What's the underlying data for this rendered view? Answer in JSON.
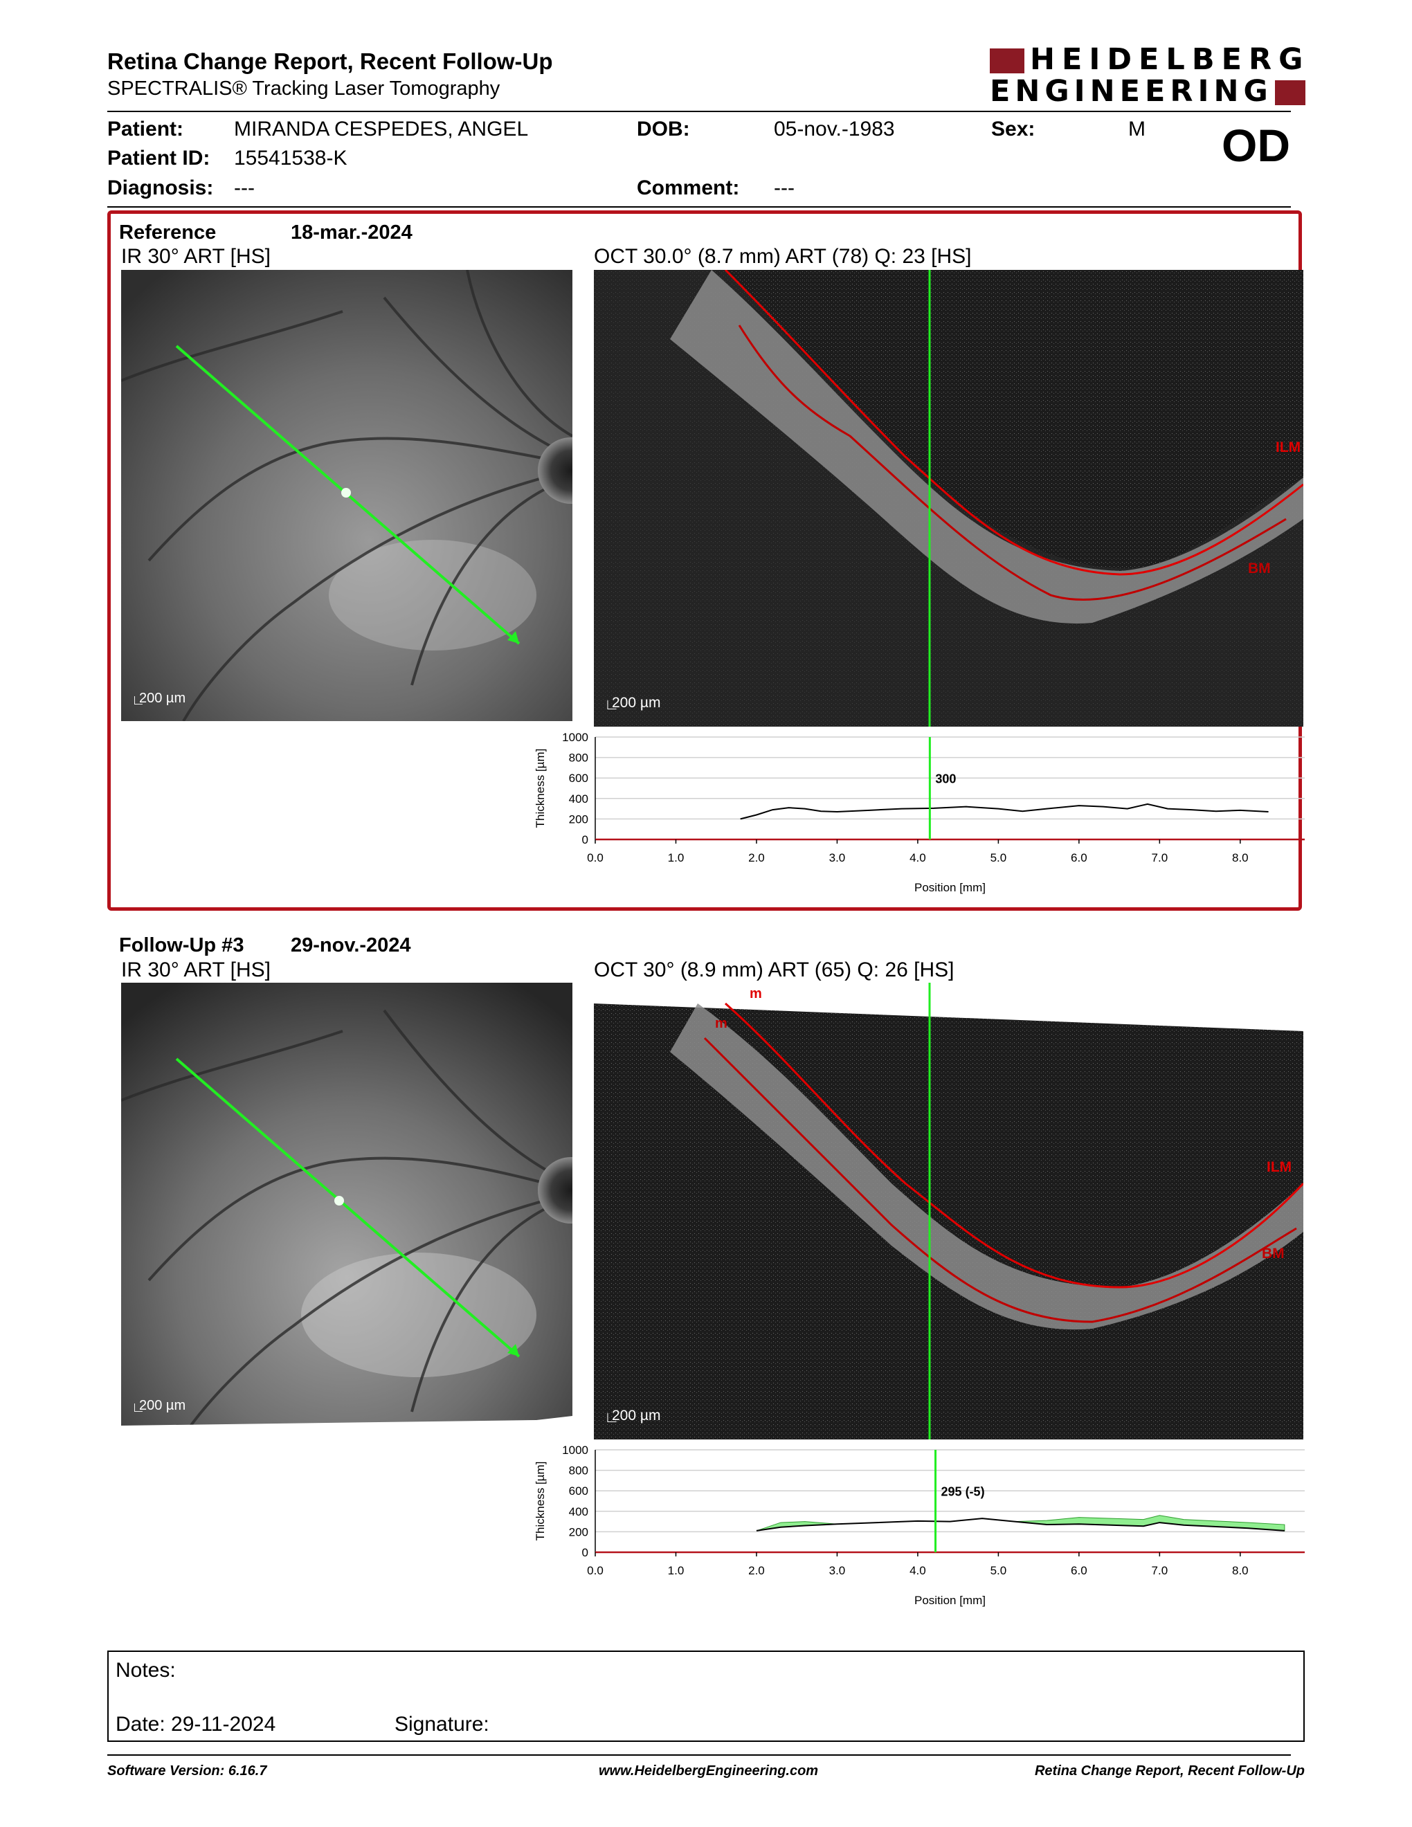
{
  "header": {
    "title": "Retina Change Report, Recent Follow-Up",
    "subtitle": "SPECTRALIS® Tracking Laser Tomography",
    "logo_line1": "HEIDELBERG",
    "logo_line2": "ENGINEERING"
  },
  "patient": {
    "patient_label": "Patient:",
    "patient_value": "MIRANDA CESPEDES, ANGEL",
    "dob_label": "DOB:",
    "dob_value": "05-nov.-1983",
    "sex_label": "Sex:",
    "sex_value": "M",
    "id_label": "Patient ID:",
    "id_value": "15541538-K",
    "diagnosis_label": "Diagnosis:",
    "diagnosis_value": "---",
    "comment_label": "Comment:",
    "comment_value": "---",
    "eye": "OD"
  },
  "reference": {
    "label": "Reference",
    "date": "18-mar.-2024",
    "ir_caption": "IR 30° ART [HS]",
    "oct_caption": "OCT 30.0° (8.7 mm) ART (78) Q: 23 [HS]",
    "scalebar": "200 µm",
    "ilm_label": "ILM",
    "bm_label": "BM",
    "marker_value": "300"
  },
  "followup": {
    "label": "Follow-Up #3",
    "date": "29-nov.-2024",
    "ir_caption": "IR 30° ART [HS]",
    "oct_caption": "OCT 30° (8.9 mm) ART (65) Q: 26 [HS]",
    "scalebar": "200 µm",
    "ilm_label": "ILM",
    "bm_label": "BM",
    "m_label": "m",
    "marker_value": "295 (-5)"
  },
  "notes": {
    "notes_label": "Notes:",
    "date_label": "Date: 29-11-2024",
    "signature_label": "Signature:"
  },
  "footer": {
    "software": "Software Version: 6.16.7",
    "website": "www.HeidelbergEngineering.com",
    "report_name": "Retina Change Report, Recent Follow-Up"
  },
  "colors": {
    "accent": "#b5121b",
    "scan_line": "#22ee22",
    "change_fill": "#90ee90"
  },
  "chart_data": [
    {
      "type": "line",
      "ylabel": "Thickness [µm]",
      "xlabel": "Position [mm]",
      "ylim": [
        0,
        1000
      ],
      "xlim": [
        0,
        8.8
      ],
      "yticks": [
        "1000",
        "800",
        "600",
        "400",
        "200",
        "0"
      ],
      "xticks": [
        "0.0",
        "1.0",
        "2.0",
        "3.0",
        "4.0",
        "5.0",
        "6.0",
        "7.0",
        "8.0"
      ],
      "marker_x": 4.15,
      "grid": true,
      "series": [
        {
          "x": [
            1.8,
            2.0,
            2.2,
            2.4,
            2.6,
            2.8,
            3.0,
            3.4,
            3.8,
            4.2,
            4.6,
            5.0,
            5.3,
            5.6,
            6.0,
            6.3,
            6.6,
            6.85,
            7.1,
            7.4,
            7.7,
            8.0,
            8.35
          ],
          "y": [
            200,
            240,
            290,
            310,
            300,
            275,
            270,
            285,
            300,
            305,
            320,
            300,
            275,
            300,
            330,
            320,
            300,
            345,
            300,
            290,
            275,
            285,
            270
          ]
        }
      ]
    },
    {
      "type": "area",
      "ylabel": "Thickness [µm]",
      "xlabel": "Position [mm]",
      "ylim": [
        0,
        1000
      ],
      "xlim": [
        0,
        8.8
      ],
      "yticks": [
        "1000",
        "800",
        "600",
        "400",
        "200",
        "0"
      ],
      "xticks": [
        "0.0",
        "1.0",
        "2.0",
        "3.0",
        "4.0",
        "5.0",
        "6.0",
        "7.0",
        "8.0"
      ],
      "marker_x": 4.22,
      "grid": true,
      "series": [
        {
          "x": [
            2.0,
            2.3,
            2.6,
            3.0,
            3.5,
            4.0,
            4.4,
            4.8,
            5.2,
            5.6,
            6.0,
            6.4,
            6.8,
            7.0,
            7.3,
            7.7,
            8.1,
            8.55
          ],
          "y": [
            210,
            245,
            260,
            275,
            290,
            305,
            300,
            330,
            300,
            270,
            275,
            265,
            255,
            290,
            265,
            250,
            235,
            210
          ]
        },
        {
          "x": [
            2.0,
            2.3,
            2.6,
            3.0,
            3.5,
            4.0,
            4.4,
            4.8,
            5.2,
            5.6,
            6.0,
            6.4,
            6.8,
            7.0,
            7.3,
            7.7,
            8.1,
            8.55
          ],
          "y": [
            210,
            290,
            300,
            275,
            290,
            305,
            300,
            330,
            300,
            310,
            340,
            330,
            320,
            360,
            320,
            305,
            290,
            270
          ]
        }
      ]
    }
  ]
}
